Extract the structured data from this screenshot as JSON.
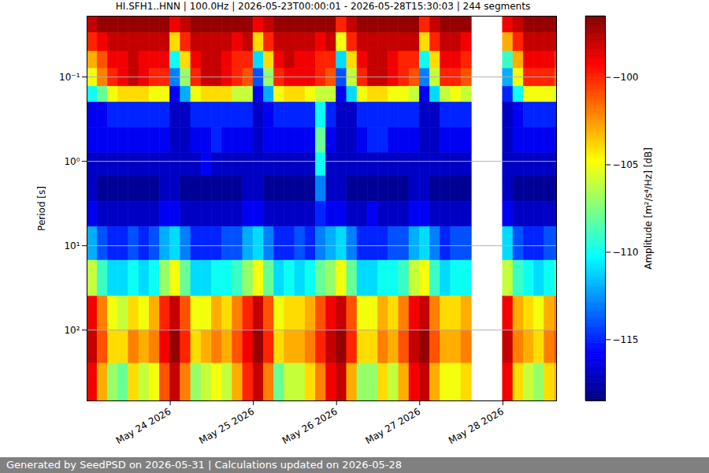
{
  "chart_data": {
    "type": "heatmap",
    "title": "HI.SFH1..HNN | 100.0Hz | 2026-05-23T00:00:01 - 2026-05-28T15:30:03 | 244 segments",
    "y_label": "Period [s]",
    "caption": "Generated by SeedPSD on 2026-05-31 | Calculations updated on 2026-05-28",
    "log": "y",
    "grid": true,
    "xlim": [
      "2026-05-23T00:00:01",
      "2026-05-28T15:30:03"
    ],
    "xticks": [
      {
        "value": "2026-05-24T00:00",
        "label": "May 24 2026"
      },
      {
        "value": "2026-05-25T00:00",
        "label": "May 25 2026"
      },
      {
        "value": "2026-05-26T00:00",
        "label": "May 26 2026"
      },
      {
        "value": "2026-05-27T00:00",
        "label": "May 27 2026"
      },
      {
        "value": "2026-05-28T00:00",
        "label": "May 28 2026"
      }
    ],
    "ylim": [
      0.019,
      690
    ],
    "yticks": [
      {
        "value": 0.1,
        "label": "10⁻¹"
      },
      {
        "value": 1,
        "label": "10⁰"
      },
      {
        "value": 10,
        "label": "10¹"
      },
      {
        "value": 100,
        "label": "10²"
      }
    ],
    "x": [
      "2026-05-23T00:00:01",
      "2026-05-23T03:00",
      "2026-05-23T06:00",
      "2026-05-23T09:00",
      "2026-05-23T12:00",
      "2026-05-23T15:00",
      "2026-05-23T18:00",
      "2026-05-23T21:00",
      "2026-05-24T00:00",
      "2026-05-24T03:00",
      "2026-05-24T06:00",
      "2026-05-24T09:00",
      "2026-05-24T12:00",
      "2026-05-24T15:00",
      "2026-05-24T18:00",
      "2026-05-24T21:00",
      "2026-05-25T00:00",
      "2026-05-25T03:00",
      "2026-05-25T06:00",
      "2026-05-25T09:00",
      "2026-05-25T12:00",
      "2026-05-25T15:00",
      "2026-05-25T18:00",
      "2026-05-25T21:00",
      "2026-05-26T00:00",
      "2026-05-26T03:00",
      "2026-05-26T06:00",
      "2026-05-26T09:00",
      "2026-05-26T12:00",
      "2026-05-26T15:00",
      "2026-05-26T18:00",
      "2026-05-26T21:00",
      "2026-05-27T00:00",
      "2026-05-27T03:00",
      "2026-05-27T06:00",
      "2026-05-27T09:00",
      "2026-05-27T12:00",
      "2026-05-27T15:00",
      "2026-05-27T18:00",
      "2026-05-27T21:00",
      "2026-05-28T00:00",
      "2026-05-28T03:00",
      "2026-05-28T06:00",
      "2026-05-28T09:00",
      "2026-05-28T12:00",
      "2026-05-28T15:00",
      "2026-05-28T15:30:03"
    ],
    "y": [
      0.019,
      0.03,
      0.05,
      0.08,
      0.13,
      0.2,
      0.4,
      0.8,
      1.5,
      3,
      6,
      15,
      40,
      100,
      250,
      690
    ],
    "values": [
      [
        -98,
        -97,
        -97,
        -97,
        -97,
        -97,
        -97,
        -97,
        -99,
        -98,
        -97,
        -97,
        -97,
        -97,
        -97,
        -97,
        -99,
        -98,
        -97,
        -97,
        -97,
        -97,
        -97,
        -97,
        -100,
        -98,
        -97,
        -97,
        -97,
        -97,
        -97,
        -97,
        -100,
        -98,
        -97,
        -97,
        -97,
        null,
        null,
        null,
        -99,
        -98,
        -97,
        -97,
        -97,
        -97
      ],
      [
        -100,
        -99,
        -98,
        -98,
        -98,
        -98,
        -98,
        -98,
        -104,
        -100,
        -98,
        -98,
        -98,
        -98,
        -99,
        -98,
        -104,
        -100,
        -98,
        -98,
        -98,
        -98,
        -99,
        -98,
        -105,
        -100,
        -98,
        -98,
        -98,
        -98,
        -98,
        -98,
        -104,
        -100,
        -98,
        -98,
        -99,
        null,
        null,
        null,
        -103,
        -100,
        -98,
        -98,
        -98,
        -98
      ],
      [
        -103,
        -101,
        -99,
        -99,
        -98,
        -99,
        -99,
        -99,
        -110,
        -104,
        -99,
        -98,
        -98,
        -99,
        -100,
        -100,
        -111,
        -104,
        -99,
        -98,
        -99,
        -99,
        -100,
        -100,
        -111,
        -104,
        -99,
        -98,
        -98,
        -99,
        -100,
        -100,
        -110,
        -104,
        -99,
        -99,
        -100,
        null,
        null,
        null,
        -109,
        -103,
        -99,
        -99,
        -99,
        -100
      ],
      [
        -105,
        -102,
        -100,
        -99,
        -98,
        -99,
        -100,
        -100,
        -113,
        -107,
        -100,
        -98,
        -98,
        -99,
        -100,
        -101,
        -114,
        -107,
        -100,
        -99,
        -99,
        -99,
        -100,
        -101,
        -114,
        -106,
        -100,
        -98,
        -98,
        -99,
        -100,
        -101,
        -113,
        -106,
        -100,
        -100,
        -101,
        null,
        null,
        null,
        -112,
        -105,
        -100,
        -100,
        -100,
        -101
      ],
      [
        -110,
        -108,
        -105,
        -104,
        -104,
        -104,
        -105,
        -105,
        -116,
        -112,
        -105,
        -104,
        -104,
        -104,
        -106,
        -106,
        -116,
        -112,
        -105,
        -104,
        -104,
        -105,
        -106,
        -106,
        -116,
        -111,
        -105,
        -104,
        -104,
        -105,
        -105,
        -106,
        -116,
        -111,
        -106,
        -105,
        -106,
        null,
        null,
        null,
        -115,
        -110,
        -105,
        -105,
        -105,
        -106
      ],
      [
        -116,
        -116,
        -115,
        -115,
        -115,
        -115,
        -115,
        -115,
        -117,
        -117,
        -115,
        -115,
        -115,
        -115,
        -115,
        -115,
        -117,
        -116,
        -115,
        -115,
        -115,
        -115,
        -110,
        -115,
        -117,
        -117,
        -115,
        -115,
        -115,
        -115,
        -115,
        -115,
        -117,
        -117,
        -115,
        -115,
        -115,
        null,
        null,
        null,
        -117,
        -116,
        -115,
        -115,
        -115,
        -115
      ],
      [
        -116,
        -116,
        -116,
        -116,
        -116,
        -116,
        -116,
        -116,
        -117,
        -117,
        -116,
        -116,
        -115,
        -116,
        -116,
        -116,
        -117,
        -116,
        -116,
        -116,
        -116,
        -116,
        -108,
        -116,
        -117,
        -117,
        -116,
        -115,
        -115,
        -116,
        -116,
        -116,
        -117,
        -117,
        -116,
        -116,
        -116,
        null,
        null,
        null,
        -117,
        -116,
        -116,
        -116,
        -116,
        -116
      ],
      [
        -117,
        -117,
        -117,
        -117,
        -117,
        -117,
        -117,
        -117,
        -117,
        -117,
        -117,
        -116,
        -117,
        -117,
        -117,
        -117,
        -117,
        -117,
        -117,
        -117,
        -117,
        -117,
        -110,
        -117,
        -117,
        -117,
        -117,
        -117,
        -117,
        -117,
        -117,
        -117,
        -117,
        -117,
        -117,
        -117,
        -117,
        null,
        null,
        null,
        -117,
        -117,
        -117,
        -117,
        -117,
        -117
      ],
      [
        -117,
        -118,
        -118,
        -118,
        -118,
        -118,
        -118,
        -117,
        -117,
        -118,
        -118,
        -118,
        -118,
        -118,
        -118,
        -117,
        -117,
        -118,
        -118,
        -118,
        -118,
        -118,
        -113,
        -117,
        -117,
        -118,
        -118,
        -118,
        -118,
        -118,
        -118,
        -117,
        -117,
        -118,
        -118,
        -118,
        -118,
        null,
        null,
        null,
        -117,
        -118,
        -118,
        -118,
        -118,
        -118
      ],
      [
        -116,
        -117,
        -117,
        -117,
        -117,
        -117,
        -117,
        -116,
        -116,
        -117,
        -117,
        -117,
        -117,
        -117,
        -117,
        -116,
        -116,
        -117,
        -117,
        -117,
        -117,
        -117,
        -115,
        -116,
        -116,
        -117,
        -117,
        -116,
        -117,
        -117,
        -117,
        -116,
        -116,
        -117,
        -117,
        -117,
        -117,
        null,
        null,
        null,
        -116,
        -117,
        -117,
        -117,
        -117,
        -117
      ],
      [
        -112,
        -114,
        -115,
        -115,
        -114,
        -115,
        -114,
        -112,
        -111,
        -113,
        -115,
        -115,
        -115,
        -114,
        -114,
        -112,
        -111,
        -113,
        -115,
        -115,
        -114,
        -115,
        -113,
        -112,
        -111,
        -113,
        -115,
        -115,
        -115,
        -114,
        -114,
        -112,
        -111,
        -113,
        -115,
        -114,
        -114,
        null,
        null,
        null,
        -111,
        -114,
        -115,
        -115,
        -114,
        -114
      ],
      [
        -106,
        -109,
        -111,
        -111,
        -110,
        -111,
        -110,
        -107,
        -105,
        -108,
        -111,
        -111,
        -110,
        -110,
        -109,
        -107,
        -105,
        -108,
        -111,
        -110,
        -111,
        -110,
        -108,
        -107,
        -105,
        -108,
        -111,
        -111,
        -110,
        -110,
        -109,
        -106,
        -105,
        -109,
        -111,
        -110,
        -110,
        null,
        null,
        null,
        -106,
        -109,
        -110,
        -111,
        -110,
        -109
      ],
      [
        -99,
        -102,
        -105,
        -106,
        -104,
        -105,
        -103,
        -100,
        -98,
        -101,
        -105,
        -105,
        -103,
        -104,
        -102,
        -100,
        -98,
        -101,
        -105,
        -104,
        -104,
        -103,
        -101,
        -99,
        -98,
        -101,
        -105,
        -105,
        -103,
        -104,
        -102,
        -99,
        -98,
        -102,
        -104,
        -104,
        -103,
        null,
        null,
        null,
        -99,
        -103,
        -104,
        -105,
        -103,
        -102
      ],
      [
        -98,
        -101,
        -104,
        -104,
        -102,
        -103,
        -102,
        -99,
        -97,
        -100,
        -104,
        -103,
        -102,
        -103,
        -101,
        -99,
        -97,
        -100,
        -104,
        -103,
        -103,
        -102,
        -100,
        -98,
        -97,
        -100,
        -104,
        -104,
        -102,
        -103,
        -101,
        -98,
        -97,
        -101,
        -103,
        -103,
        -102,
        null,
        null,
        null,
        -98,
        -102,
        -103,
        -104,
        -102,
        -101
      ],
      [
        -99,
        -103,
        -107,
        -108,
        -104,
        -106,
        -105,
        -101,
        -98,
        -102,
        -107,
        -106,
        -105,
        -106,
        -103,
        -100,
        -98,
        -102,
        -108,
        -106,
        -106,
        -104,
        -102,
        -99,
        -98,
        -103,
        -107,
        -107,
        -104,
        -106,
        -103,
        -99,
        -98,
        -103,
        -105,
        -105,
        -104,
        null,
        null,
        null,
        -99,
        -104,
        -106,
        -107,
        -104,
        -103
      ]
    ],
    "colorbar": {
      "label": "Amplitude [m²/s⁴/Hz] [dB]",
      "range": [
        -118.5,
        -96.5
      ],
      "ticks": [
        {
          "value": -100,
          "label": "−100"
        },
        {
          "value": -105,
          "label": "−105"
        },
        {
          "value": -110,
          "label": "−110"
        },
        {
          "value": -115,
          "label": "−115"
        }
      ]
    }
  }
}
